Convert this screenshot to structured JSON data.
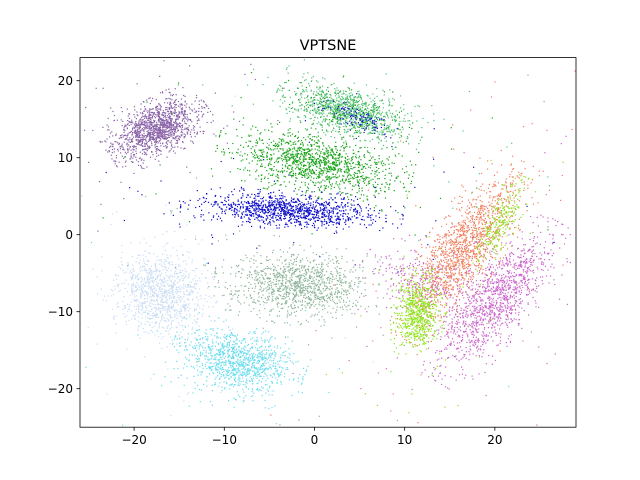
{
  "chart_data": {
    "type": "scatter",
    "title": "VPTSNE",
    "xlabel": "",
    "ylabel": "",
    "xlim": [
      -26,
      29
    ],
    "ylim": [
      -25,
      23
    ],
    "xticks": [
      -20,
      -10,
      0,
      10,
      20
    ],
    "yticks": [
      -20,
      -10,
      0,
      10,
      20
    ],
    "grid": false,
    "legend": "none",
    "series": [
      {
        "color": "#8a63a8",
        "clusters": [
          {
            "cx": -17.5,
            "cy": 13.8,
            "sx": 3.3,
            "sy": 2.0,
            "angle": 30,
            "n": 1400
          }
        ]
      },
      {
        "color": "#1aa31a",
        "clusters": [
          {
            "cx": 0.0,
            "cy": 9.3,
            "sx": 5.8,
            "sy": 2.3,
            "angle": -12,
            "n": 1300
          },
          {
            "cx": 3.5,
            "cy": 16.0,
            "sx": 4.0,
            "sy": 1.6,
            "angle": -20,
            "n": 350
          }
        ]
      },
      {
        "color": "#55c47a",
        "clusters": [
          {
            "cx": 4.0,
            "cy": 16.0,
            "sx": 4.5,
            "sy": 2.0,
            "angle": -20,
            "n": 900
          }
        ]
      },
      {
        "color": "#1010cc",
        "clusters": [
          {
            "cx": -2.5,
            "cy": 3.2,
            "sx": 6.5,
            "sy": 1.3,
            "angle": -3,
            "n": 1200
          },
          {
            "cx": 5.0,
            "cy": 15.0,
            "sx": 2.5,
            "sy": 0.9,
            "angle": -25,
            "n": 120
          }
        ]
      },
      {
        "color": "#c9dcf4",
        "clusters": [
          {
            "cx": -17.0,
            "cy": -7.5,
            "sx": 3.2,
            "sy": 3.8,
            "angle": 20,
            "n": 1100
          }
        ]
      },
      {
        "color": "#8fb59a",
        "clusters": [
          {
            "cx": -2.0,
            "cy": -6.5,
            "sx": 4.8,
            "sy": 2.7,
            "angle": -5,
            "n": 1200
          }
        ]
      },
      {
        "color": "#6adcee",
        "clusters": [
          {
            "cx": -8.5,
            "cy": -16.5,
            "sx": 4.0,
            "sy": 2.5,
            "angle": -18,
            "n": 1100
          }
        ]
      },
      {
        "color": "#f08060",
        "clusters": [
          {
            "cx": 16.5,
            "cy": -2.0,
            "sx": 7.0,
            "sy": 2.3,
            "angle": 60,
            "n": 1500
          }
        ]
      },
      {
        "color": "#cc66cc",
        "clusters": [
          {
            "cx": 20.0,
            "cy": -8.5,
            "sx": 6.5,
            "sy": 2.4,
            "angle": 55,
            "n": 1300
          },
          {
            "cx": 11.5,
            "cy": -6.0,
            "sx": 2.5,
            "sy": 3.5,
            "angle": 60,
            "n": 250
          }
        ]
      },
      {
        "color": "#8de61a",
        "clusters": [
          {
            "cx": 11.5,
            "cy": -10.0,
            "sx": 1.6,
            "sy": 3.0,
            "angle": 0,
            "n": 700
          },
          {
            "cx": 20.5,
            "cy": 1.5,
            "sx": 3.5,
            "sy": 1.0,
            "angle": 65,
            "n": 250
          }
        ]
      }
    ]
  }
}
